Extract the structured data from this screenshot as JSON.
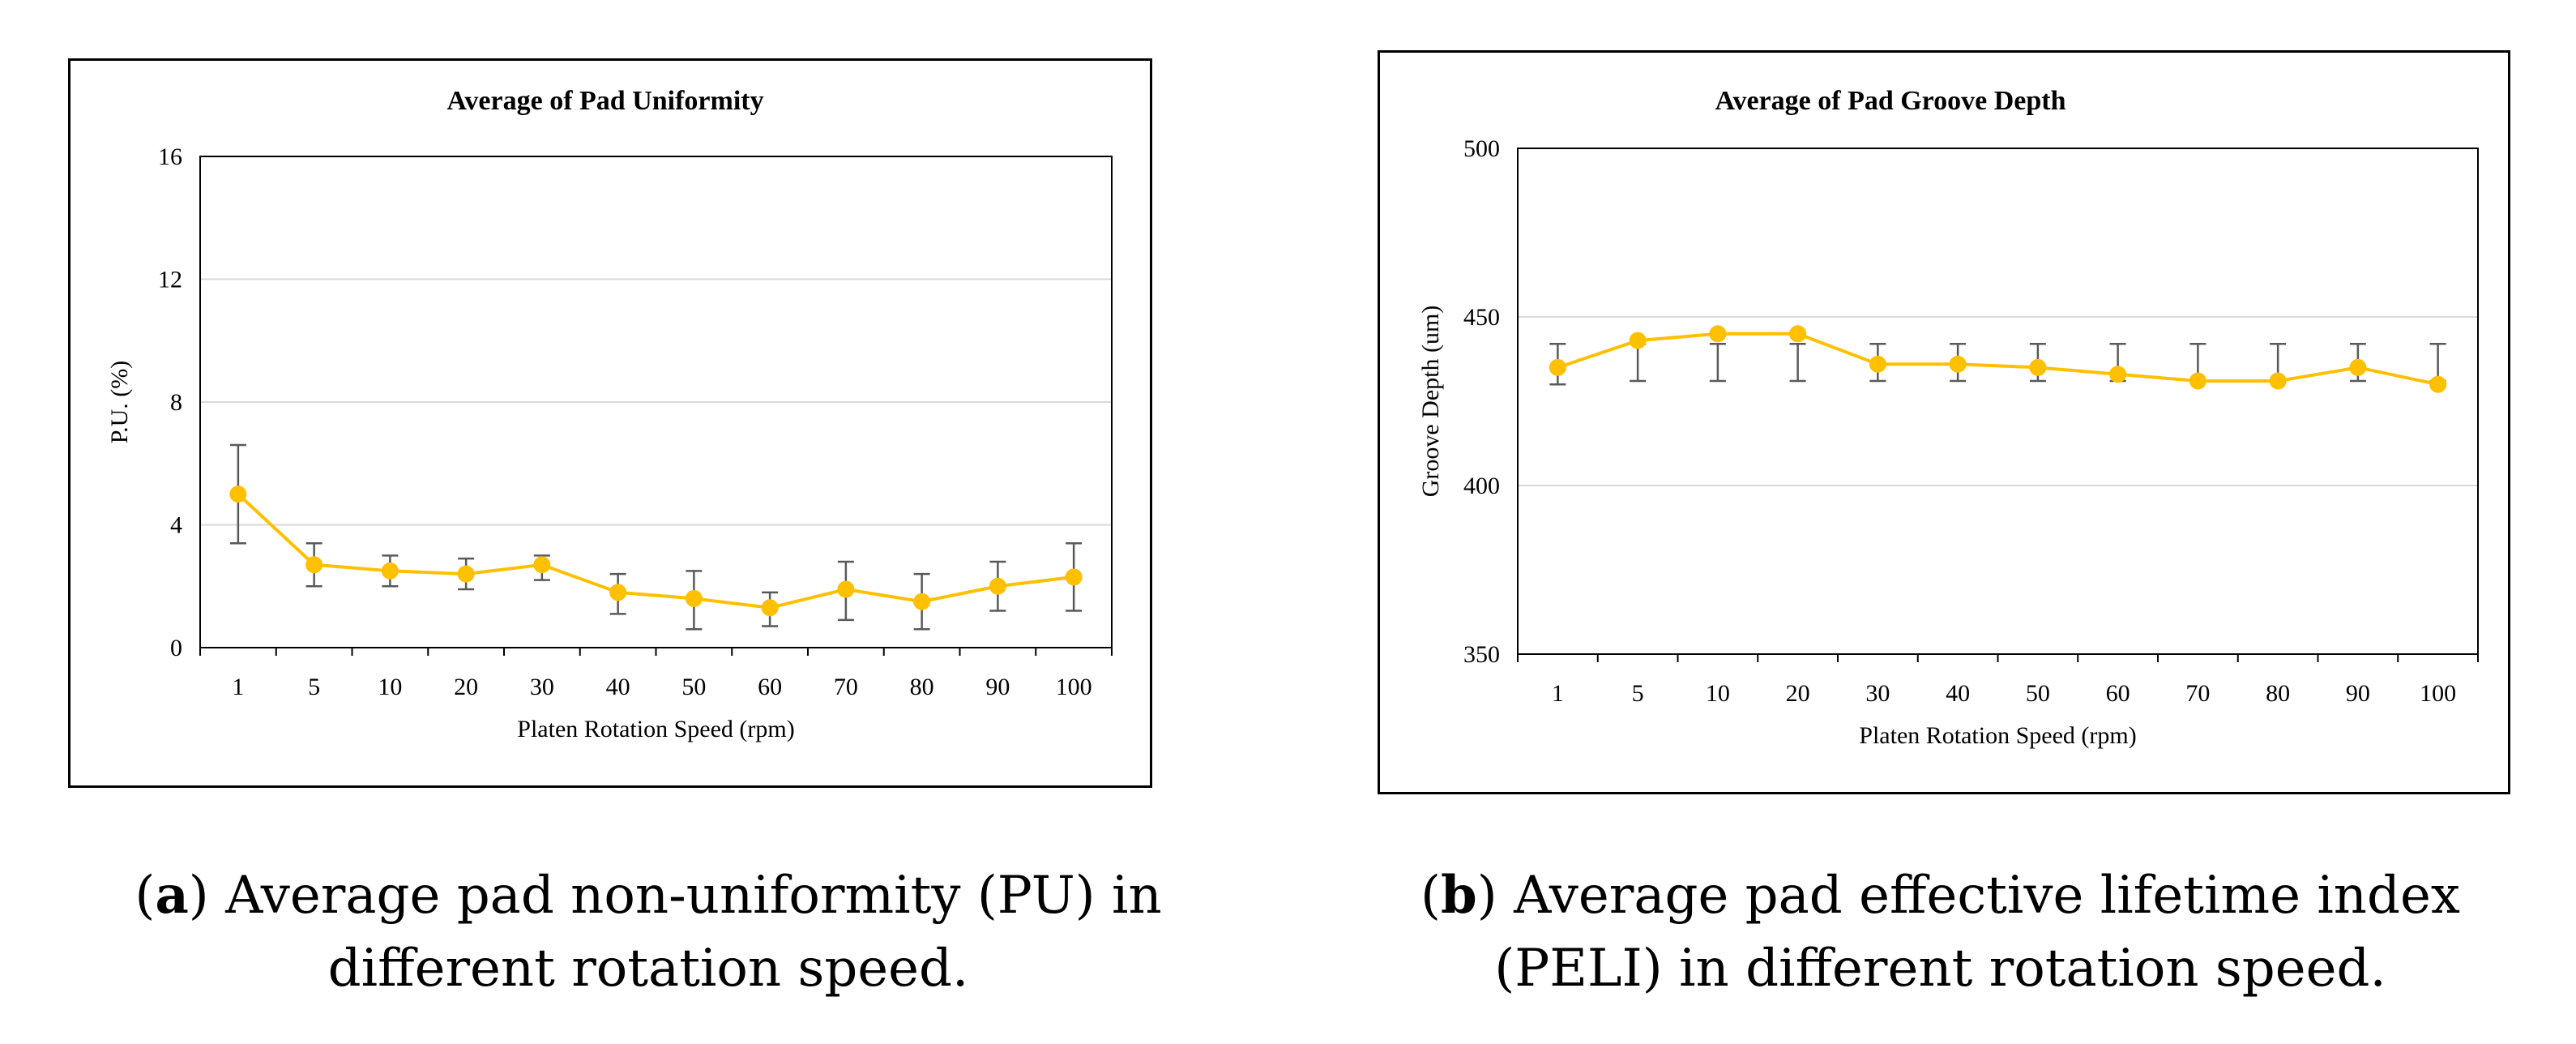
{
  "colors": {
    "series": "#FFC000",
    "errorbar": "#595959",
    "grid": "#d9d9d9",
    "axis": "#000000"
  },
  "captions": [
    {
      "letter": "a",
      "open": "(",
      "close": ")",
      "line1": " Average pad non-uniformity (PU) in",
      "line2": "different rotation speed."
    },
    {
      "letter": "b",
      "open": "(",
      "close": ")",
      "line1": " Average pad effective lifetime index",
      "line2": "(PELI) in different rotation speed."
    }
  ],
  "chart_data": [
    {
      "type": "line",
      "title": "Average of Pad Uniformity",
      "xlabel": "Platen Rotation Speed (rpm)",
      "ylabel": "P.U. (%)",
      "categories": [
        "1",
        "5",
        "10",
        "20",
        "30",
        "40",
        "50",
        "60",
        "70",
        "80",
        "90",
        "100"
      ],
      "ylim": [
        0,
        16
      ],
      "yticks": [
        0,
        4,
        8,
        12,
        16
      ],
      "grid": true,
      "series": [
        {
          "name": "Average of Pad Uniformity",
          "values": [
            5.0,
            2.7,
            2.5,
            2.4,
            2.7,
            1.8,
            1.6,
            1.3,
            1.9,
            1.5,
            2.0,
            2.3
          ],
          "err_high": [
            6.6,
            3.4,
            3.0,
            2.9,
            3.0,
            2.4,
            2.5,
            1.8,
            2.8,
            2.4,
            2.8,
            3.4
          ],
          "err_low": [
            3.4,
            2.0,
            2.0,
            1.9,
            2.2,
            1.1,
            0.6,
            0.7,
            0.9,
            0.6,
            1.2,
            1.2
          ]
        }
      ]
    },
    {
      "type": "line",
      "title": "Average of Pad Groove Depth",
      "xlabel": "Platen Rotation Speed (rpm)",
      "ylabel": "Groove Depth (um)",
      "categories": [
        "1",
        "5",
        "10",
        "20",
        "30",
        "40",
        "50",
        "60",
        "70",
        "80",
        "90",
        "100"
      ],
      "ylim": [
        350,
        500
      ],
      "yticks": [
        350,
        400,
        450,
        500
      ],
      "grid": true,
      "series": [
        {
          "name": "Average of Pad Groove Depth",
          "values": [
            435,
            443,
            445,
            445,
            436,
            436,
            435,
            433,
            431,
            431,
            435,
            430
          ],
          "err_high": [
            442,
            442,
            442,
            442,
            442,
            442,
            442,
            442,
            442,
            442,
            442,
            442
          ],
          "err_low": [
            430,
            431,
            431,
            431,
            431,
            431,
            431,
            431,
            431,
            431,
            431,
            431
          ]
        }
      ]
    }
  ]
}
